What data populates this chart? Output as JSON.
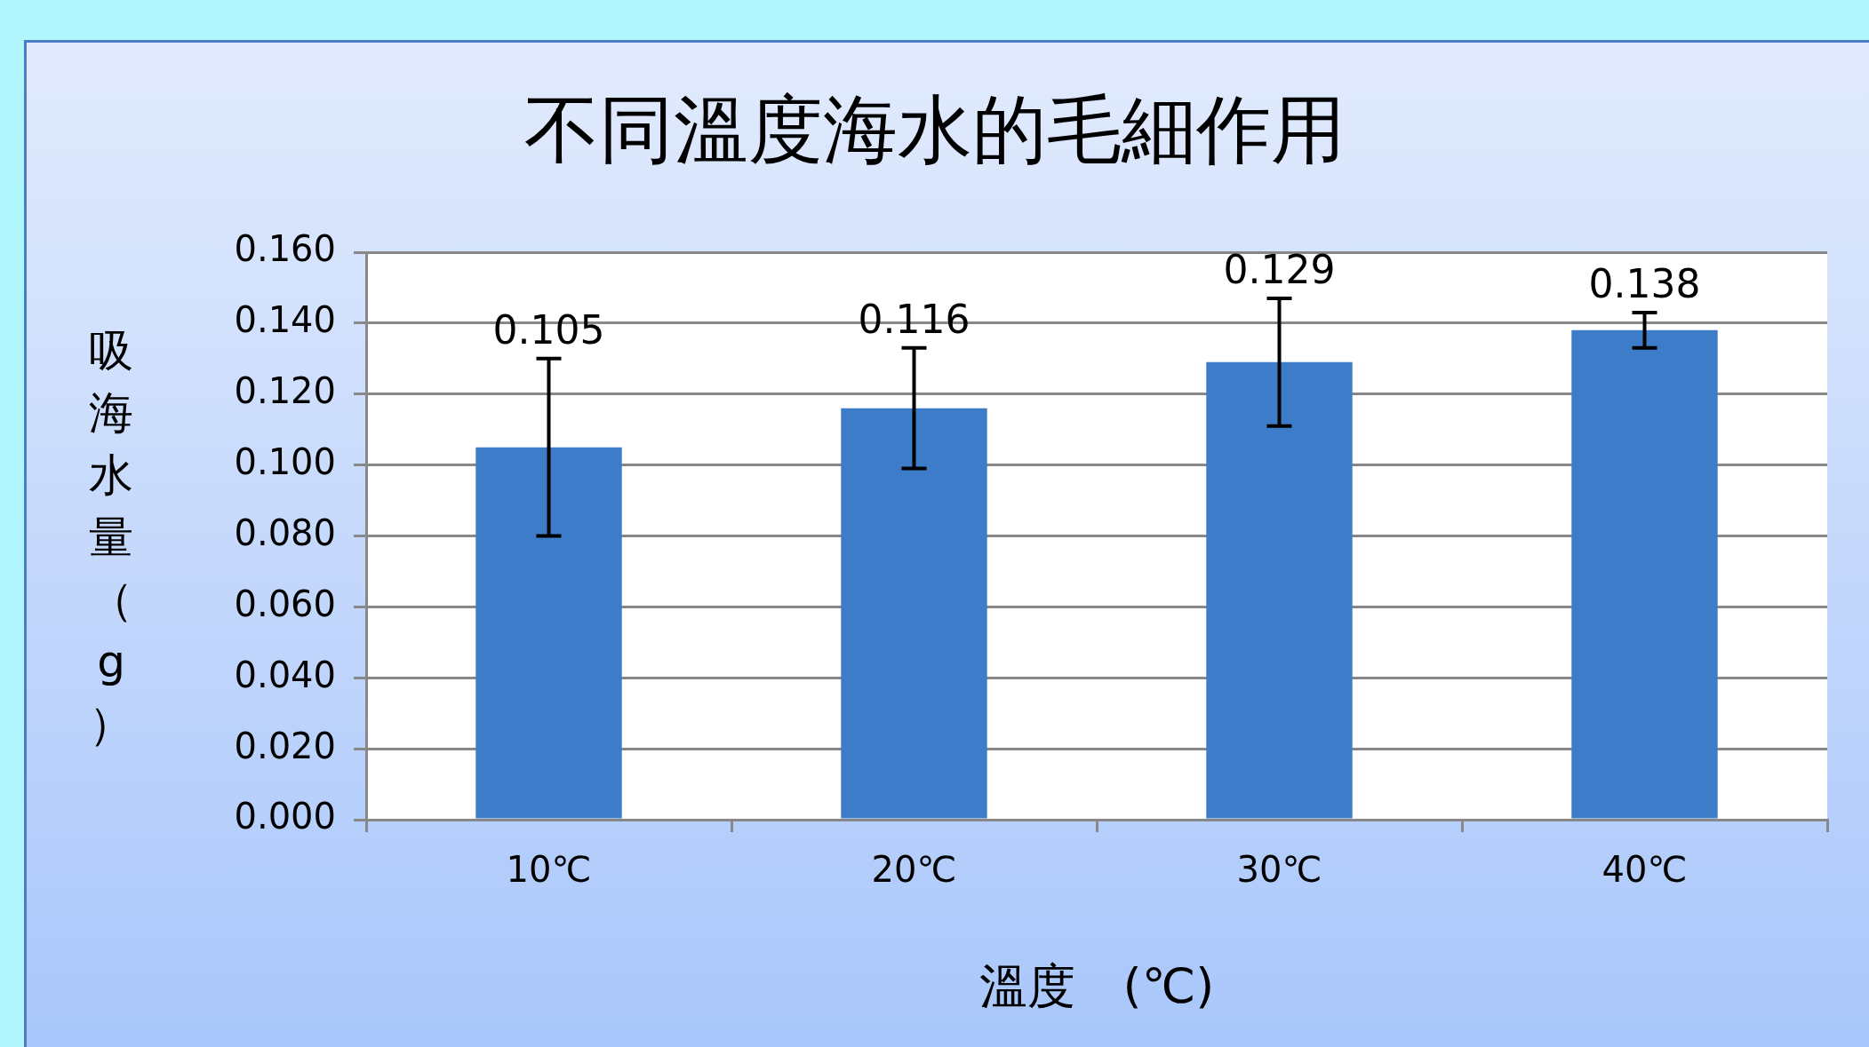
{
  "chart_data": {
    "type": "bar",
    "title": "不同溫度海水的毛細作用",
    "xlabel": "溫度　(℃)",
    "ylabel": "吸海水量（g）",
    "categories": [
      "10℃",
      "20℃",
      "30℃",
      "40℃"
    ],
    "values": [
      0.105,
      0.116,
      0.129,
      0.138
    ],
    "errors": [
      0.025,
      0.017,
      0.018,
      0.005
    ],
    "color": "#3d7cc9",
    "ylim": [
      0,
      0.16
    ],
    "yticks": [
      {
        "value": 0,
        "label": "0.000"
      },
      {
        "value": 0.02,
        "label": "0.020"
      },
      {
        "value": 0.04,
        "label": "0.040"
      },
      {
        "value": 0.06,
        "label": "0.060"
      },
      {
        "value": 0.08,
        "label": "0.080"
      },
      {
        "value": 0.1,
        "label": "0.100"
      },
      {
        "value": 0.12,
        "label": "0.120"
      },
      {
        "value": 0.14,
        "label": "0.140"
      },
      {
        "value": 0.16,
        "label": "0.160"
      }
    ],
    "grid": "y",
    "data_labels": true,
    "legend": false
  }
}
